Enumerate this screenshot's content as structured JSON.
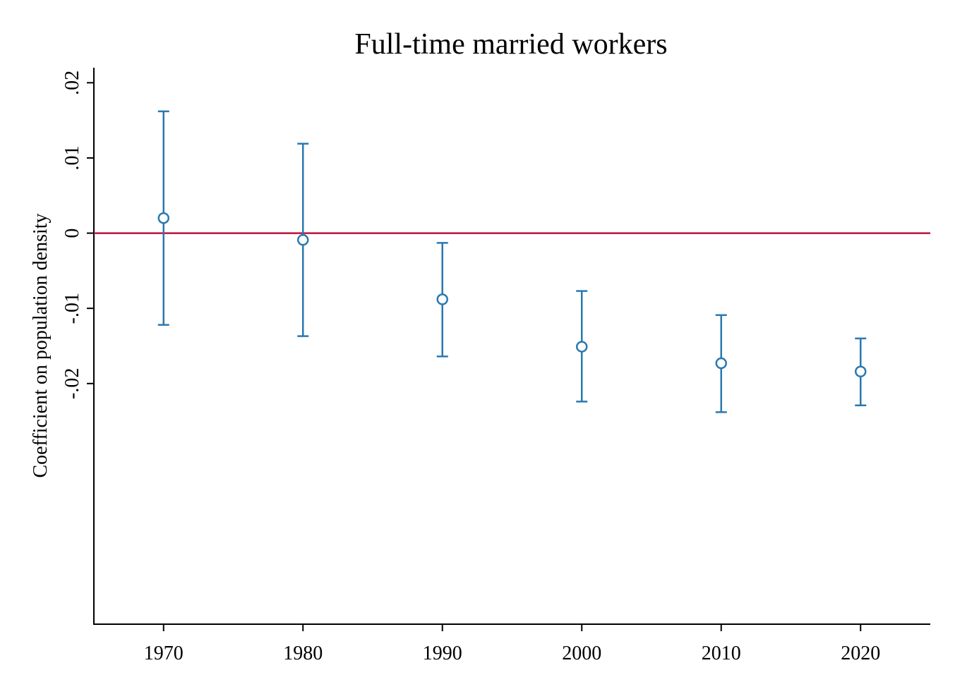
{
  "chart_data": {
    "type": "scatter",
    "title": "Full-time married workers",
    "xlabel": "",
    "ylabel": "Coefficient on population density",
    "x_ticks": [
      "1970",
      "1980",
      "1990",
      "2000",
      "2010",
      "2020"
    ],
    "y_ticks": [
      ".02",
      ".01",
      "0",
      "-.01",
      "-.02"
    ],
    "x_range": [
      1965,
      2025
    ],
    "y_range": [
      -0.052,
      0.022
    ],
    "reference_line": {
      "y": 0,
      "color": "#c0103a"
    },
    "series": [
      {
        "color": "#2a78b0",
        "points": [
          {
            "x": 1970,
            "y": 0.002,
            "ci_low": -0.0122,
            "ci_high": 0.0162
          },
          {
            "x": 1980,
            "y": -0.0009,
            "ci_low": -0.0137,
            "ci_high": 0.0119
          },
          {
            "x": 1990,
            "y": -0.0088,
            "ci_low": -0.0164,
            "ci_high": -0.0013
          },
          {
            "x": 2000,
            "y": -0.0151,
            "ci_low": -0.0224,
            "ci_high": -0.0077
          },
          {
            "x": 2010,
            "y": -0.0173,
            "ci_low": -0.0238,
            "ci_high": -0.0109
          },
          {
            "x": 2020,
            "y": -0.0184,
            "ci_low": -0.0229,
            "ci_high": -0.014
          }
        ]
      }
    ],
    "grid": false,
    "legend": "none"
  }
}
